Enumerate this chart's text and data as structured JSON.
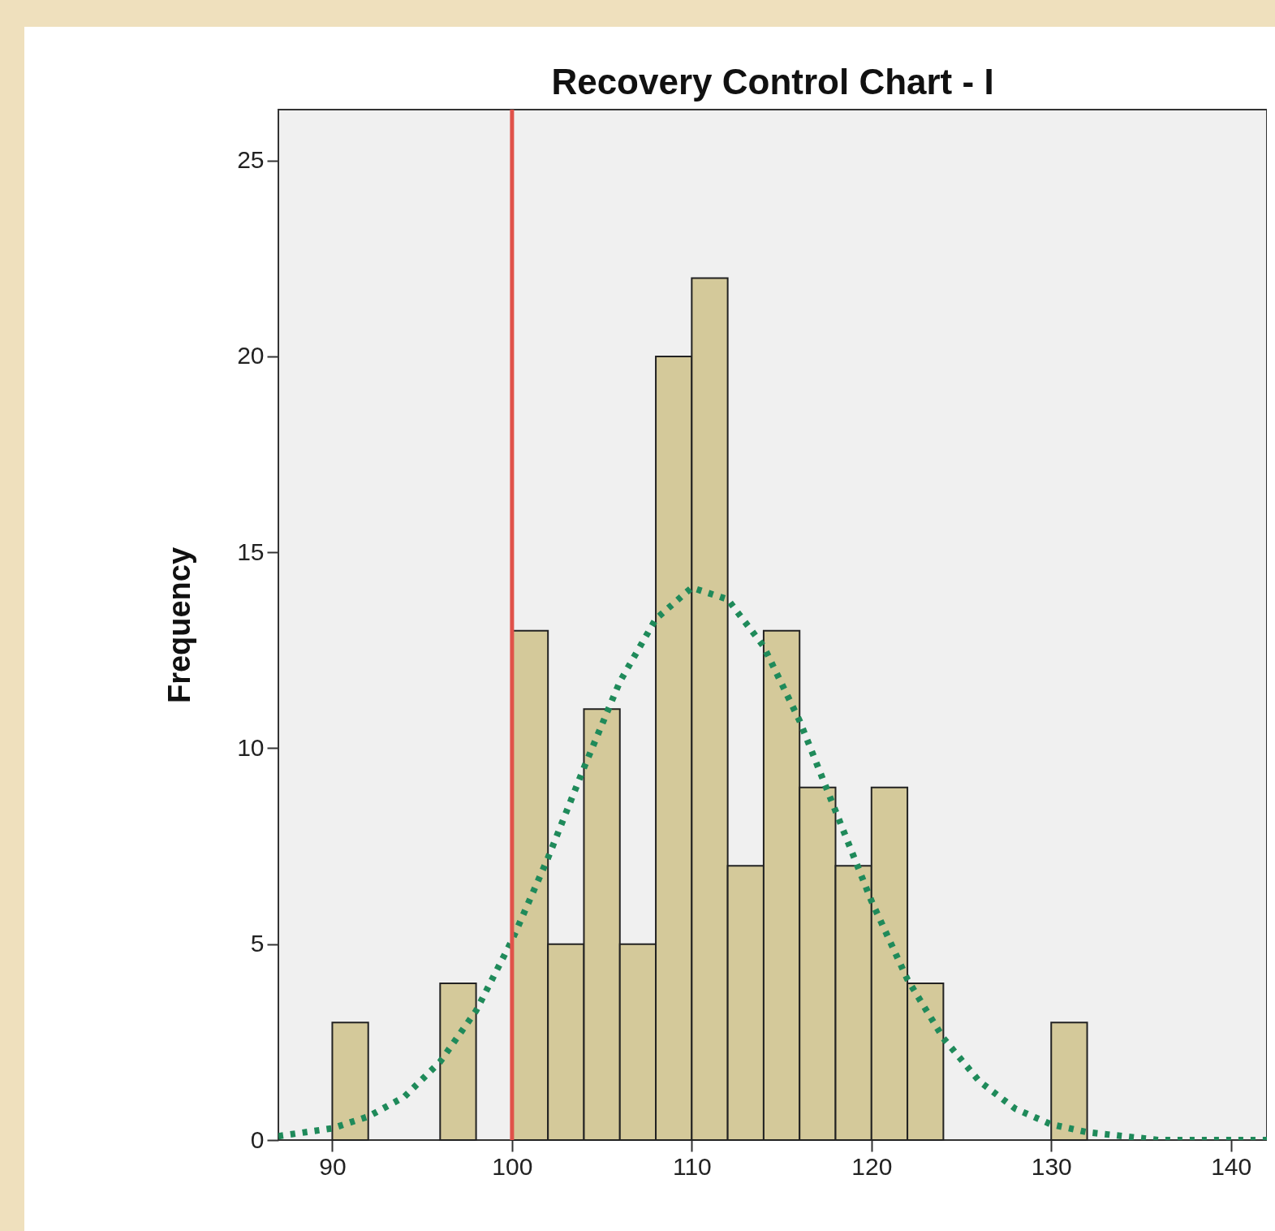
{
  "chart_data": {
    "type": "histogram",
    "title": "Recovery Control Chart - I",
    "ylabel": "Frequency",
    "bins": [
      90,
      92,
      94,
      96,
      98,
      100,
      102,
      104,
      106,
      108,
      110,
      112,
      114,
      116,
      118,
      120,
      122,
      124,
      126,
      128,
      130,
      132
    ],
    "values": [
      3,
      0,
      0,
      4,
      0,
      13,
      5,
      11,
      5,
      20,
      22,
      7,
      13,
      9,
      7,
      9,
      4,
      0,
      0,
      0,
      3
    ],
    "color": "#d4c99a",
    "series": [
      {
        "type": "line",
        "color": "#1f8a5a",
        "line_style": "dotted",
        "x": [
          87,
          90,
          92,
          94,
          96,
          98,
          100,
          102,
          104,
          106,
          108,
          110,
          112,
          114,
          116,
          118,
          120,
          122,
          124,
          126,
          128,
          130,
          132,
          134,
          136,
          138,
          140,
          142
        ],
        "values": [
          0.1,
          0.3,
          0.6,
          1.1,
          2.0,
          3.3,
          5.1,
          7.2,
          9.5,
          11.7,
          13.3,
          14.1,
          13.8,
          12.6,
          10.7,
          8.4,
          6.1,
          4.1,
          2.6,
          1.5,
          0.8,
          0.4,
          0.2,
          0.1,
          0,
          0,
          0,
          0
        ]
      }
    ],
    "ref_lines": [
      {
        "axis": "x",
        "value": 100,
        "color": "#e0524a"
      }
    ],
    "xlim": [
      87,
      142
    ],
    "ylim": [
      0,
      26.3
    ],
    "xticks": [
      90,
      100,
      110,
      120,
      130,
      140
    ],
    "yticks": [
      0,
      5,
      10,
      15,
      20,
      25
    ],
    "grid": false
  }
}
